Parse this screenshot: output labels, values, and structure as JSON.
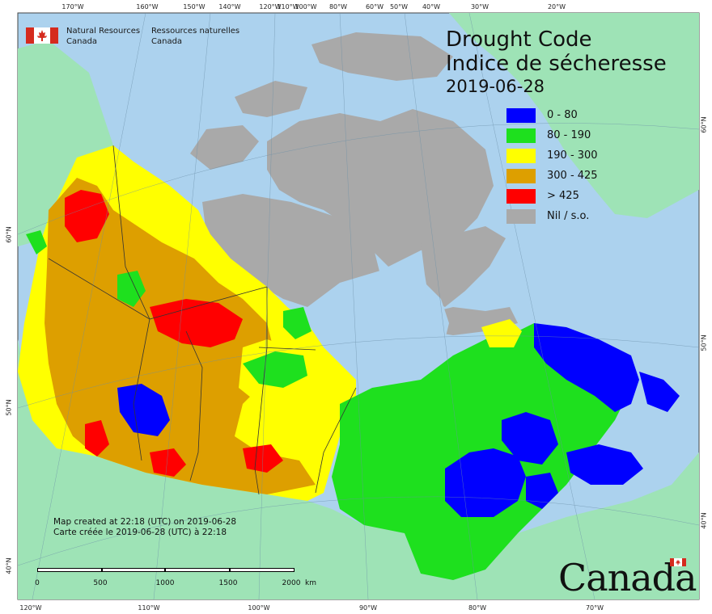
{
  "map": {
    "agency_en_line1": "Natural Resources",
    "agency_en_line2": "Canada",
    "agency_fr_line1": "Ressources naturelles",
    "agency_fr_line2": "Canada",
    "title_en": "Drought Code",
    "title_fr": "Indice de sécheresse",
    "date": "2019-06-28",
    "legend": [
      {
        "label": "0 - 80",
        "color": "#0000ff"
      },
      {
        "label": "80 - 190",
        "color": "#1ee01e"
      },
      {
        "label": "190 - 300",
        "color": "#ffff00"
      },
      {
        "label": "300 - 425",
        "color": "#dd9f00"
      },
      {
        "label": "> 425",
        "color": "#ff0000"
      },
      {
        "label": "Nil / s.o.",
        "color": "#a9a9a9"
      }
    ],
    "credit_en": "Map created at 22:18 (UTC) on 2019-06-28",
    "credit_fr": "Carte créée le 2019-06-28 (UTC) à 22:18",
    "scale_labels": [
      "0",
      "500",
      "1000",
      "1500",
      "2000"
    ],
    "scale_unit": "km",
    "wordmark": "Canada",
    "ticks_top": [
      "170°W",
      "160°W",
      "150°W",
      "140°W",
      "120°W",
      "110°W",
      "100°W",
      "80°W",
      "60°W",
      "50°W",
      "40°W",
      "30°W",
      "20°W"
    ],
    "ticks_bottom": [
      "120°W",
      "110°W",
      "100°W",
      "90°W",
      "80°W",
      "70°W"
    ],
    "ticks_left": [
      "60°N",
      "50°N",
      "40°N"
    ],
    "ticks_right": [
      "60°N",
      "50°N",
      "40°N"
    ],
    "colors": {
      "ocean": "#acd2ee",
      "land_outside": "#9ee3b6",
      "no_data": "#a9a9a9",
      "flag_red": "#d52b1e"
    }
  }
}
